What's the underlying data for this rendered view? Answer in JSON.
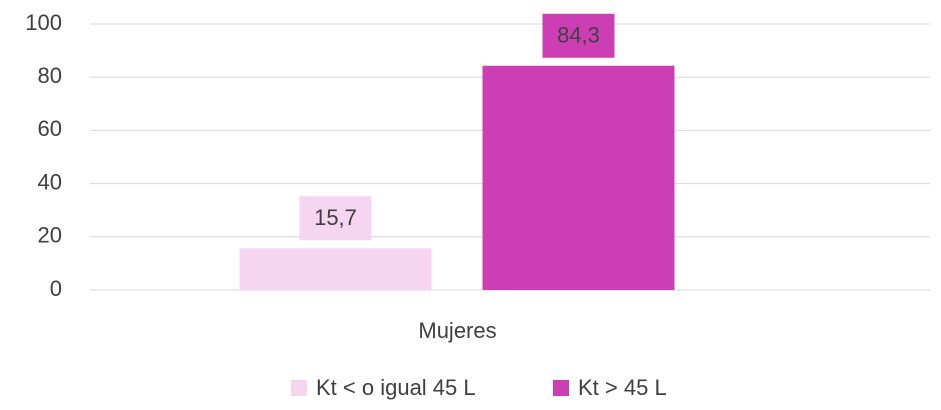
{
  "chart_data": {
    "type": "bar",
    "categories": [
      "Mujeres"
    ],
    "series": [
      {
        "name": "Kt < o igual 45 L",
        "color": "#f5d5ef",
        "values": [
          15.7
        ],
        "value_labels": [
          "15,7"
        ]
      },
      {
        "name": "Kt > 45 L",
        "color": "#cc3fb4",
        "values": [
          84.3
        ],
        "value_labels": [
          "84,3"
        ]
      }
    ],
    "ylim": [
      0,
      100
    ],
    "yticks": [
      0,
      20,
      40,
      60,
      80,
      100
    ],
    "grid": true,
    "legend": "bottom"
  }
}
